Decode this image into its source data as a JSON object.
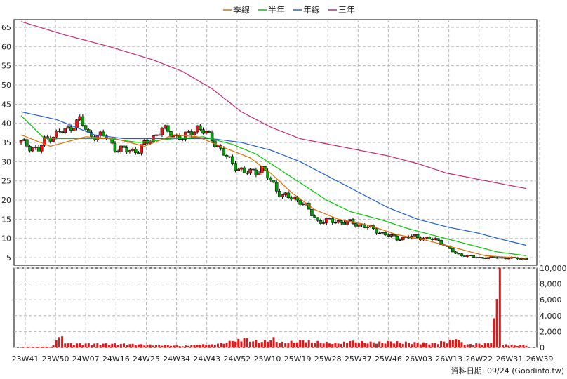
{
  "chart_data": {
    "type": "line",
    "legend": [
      {
        "name": "季線",
        "color": "#e06c00"
      },
      {
        "name": "半年",
        "color": "#00c800"
      },
      {
        "name": "年線",
        "color": "#1f5fd6"
      },
      {
        "name": "三年",
        "color": "#c8287a"
      }
    ],
    "x_ticks": [
      "23W41",
      "23W50",
      "24W07",
      "24W16",
      "24W25",
      "24W34",
      "24W43",
      "24W52",
      "25W10",
      "25W19",
      "25W28",
      "25W37",
      "25W46",
      "26W03",
      "26W13",
      "26W22",
      "26W31",
      "26W39"
    ],
    "price_ticks": [
      5,
      10,
      15,
      20,
      25,
      30,
      35,
      40,
      45,
      50,
      55,
      60,
      65
    ],
    "price_ylim": [
      3,
      67
    ],
    "volume_ticks": [
      "0",
      "2,000",
      "4,000",
      "6,000",
      "8,000",
      "10,000"
    ],
    "volume_ylim": [
      0,
      10000
    ],
    "candle_colors": {
      "up": "#e01818",
      "down": "#00a000",
      "flat": "#000000"
    },
    "volume_color": "#e01818",
    "grid": true,
    "credit": "資料日期: 09/24  (Goodinfo.tw)",
    "anchors": {
      "close": [
        [
          0,
          35
        ],
        [
          6,
          33
        ],
        [
          8,
          35.5
        ],
        [
          11,
          37
        ],
        [
          16,
          38.5
        ],
        [
          20,
          41
        ],
        [
          23,
          37
        ],
        [
          29,
          36.5
        ],
        [
          33,
          33
        ],
        [
          40,
          33
        ],
        [
          45,
          36.5
        ],
        [
          48,
          38.5
        ],
        [
          52,
          37
        ],
        [
          55,
          36
        ],
        [
          60,
          39
        ],
        [
          65,
          36
        ],
        [
          70,
          31
        ],
        [
          76,
          27
        ],
        [
          82,
          28
        ],
        [
          89,
          21
        ],
        [
          95,
          20
        ],
        [
          101,
          14.5
        ],
        [
          107,
          14.5
        ],
        [
          113,
          14
        ],
        [
          118,
          13
        ],
        [
          124,
          11
        ],
        [
          128,
          10
        ],
        [
          134,
          10.5
        ],
        [
          142,
          9.5
        ],
        [
          148,
          6
        ],
        [
          155,
          5
        ],
        [
          162,
          5
        ],
        [
          170,
          4.8
        ],
        [
          172,
          4.6
        ]
      ],
      "ma_q": [
        [
          0,
          37
        ],
        [
          10,
          34
        ],
        [
          22,
          36.5
        ],
        [
          32,
          36
        ],
        [
          42,
          34
        ],
        [
          52,
          37
        ],
        [
          60,
          36.5
        ],
        [
          68,
          34
        ],
        [
          78,
          31
        ],
        [
          85,
          27
        ],
        [
          92,
          22
        ],
        [
          100,
          17.5
        ],
        [
          108,
          15
        ],
        [
          118,
          13.5
        ],
        [
          128,
          11
        ],
        [
          138,
          9.5
        ],
        [
          148,
          7.5
        ],
        [
          158,
          5.5
        ],
        [
          172,
          4.8
        ]
      ],
      "ma_h": [
        [
          0,
          42
        ],
        [
          8,
          36
        ],
        [
          18,
          36
        ],
        [
          30,
          36
        ],
        [
          40,
          35
        ],
        [
          52,
          36
        ],
        [
          62,
          36.5
        ],
        [
          72,
          34.5
        ],
        [
          80,
          32
        ],
        [
          88,
          28
        ],
        [
          96,
          24
        ],
        [
          104,
          20
        ],
        [
          112,
          17
        ],
        [
          122,
          15
        ],
        [
          132,
          12.5
        ],
        [
          142,
          10.5
        ],
        [
          152,
          8.5
        ],
        [
          162,
          6.5
        ],
        [
          172,
          5.5
        ]
      ],
      "ma_y": [
        [
          0,
          43
        ],
        [
          12,
          41
        ],
        [
          25,
          37
        ],
        [
          35,
          36
        ],
        [
          45,
          36
        ],
        [
          55,
          36
        ],
        [
          65,
          36
        ],
        [
          75,
          35
        ],
        [
          85,
          33
        ],
        [
          95,
          30
        ],
        [
          105,
          26
        ],
        [
          115,
          22
        ],
        [
          125,
          18
        ],
        [
          135,
          15
        ],
        [
          145,
          13
        ],
        [
          155,
          11.5
        ],
        [
          165,
          9.5
        ],
        [
          172,
          8.2
        ]
      ],
      "ma_3y": [
        [
          0,
          66.5
        ],
        [
          15,
          63
        ],
        [
          30,
          60
        ],
        [
          45,
          56.5
        ],
        [
          55,
          53.5
        ],
        [
          65,
          49
        ],
        [
          75,
          43
        ],
        [
          85,
          39
        ],
        [
          95,
          36
        ],
        [
          105,
          34.5
        ],
        [
          115,
          33
        ],
        [
          125,
          31.5
        ],
        [
          135,
          29.5
        ],
        [
          145,
          27
        ],
        [
          155,
          25.5
        ],
        [
          165,
          24
        ],
        [
          172,
          23
        ]
      ],
      "volume": [
        [
          0,
          0
        ],
        [
          10,
          0
        ],
        [
          11,
          300
        ],
        [
          12,
          900
        ],
        [
          13,
          1300
        ],
        [
          14,
          1400
        ],
        [
          15,
          500
        ],
        [
          34,
          450
        ],
        [
          55,
          150
        ],
        [
          60,
          300
        ],
        [
          65,
          400
        ],
        [
          68,
          600
        ],
        [
          72,
          800
        ],
        [
          76,
          1200
        ],
        [
          82,
          700
        ],
        [
          86,
          1300
        ],
        [
          88,
          600
        ],
        [
          96,
          900
        ],
        [
          108,
          500
        ],
        [
          112,
          800
        ],
        [
          120,
          650
        ],
        [
          126,
          750
        ],
        [
          135,
          600
        ],
        [
          140,
          550
        ],
        [
          148,
          1050
        ],
        [
          152,
          400
        ],
        [
          160,
          550
        ],
        [
          163,
          10200
        ],
        [
          164,
          300
        ],
        [
          165,
          400
        ],
        [
          168,
          250
        ],
        [
          172,
          200
        ]
      ]
    }
  }
}
